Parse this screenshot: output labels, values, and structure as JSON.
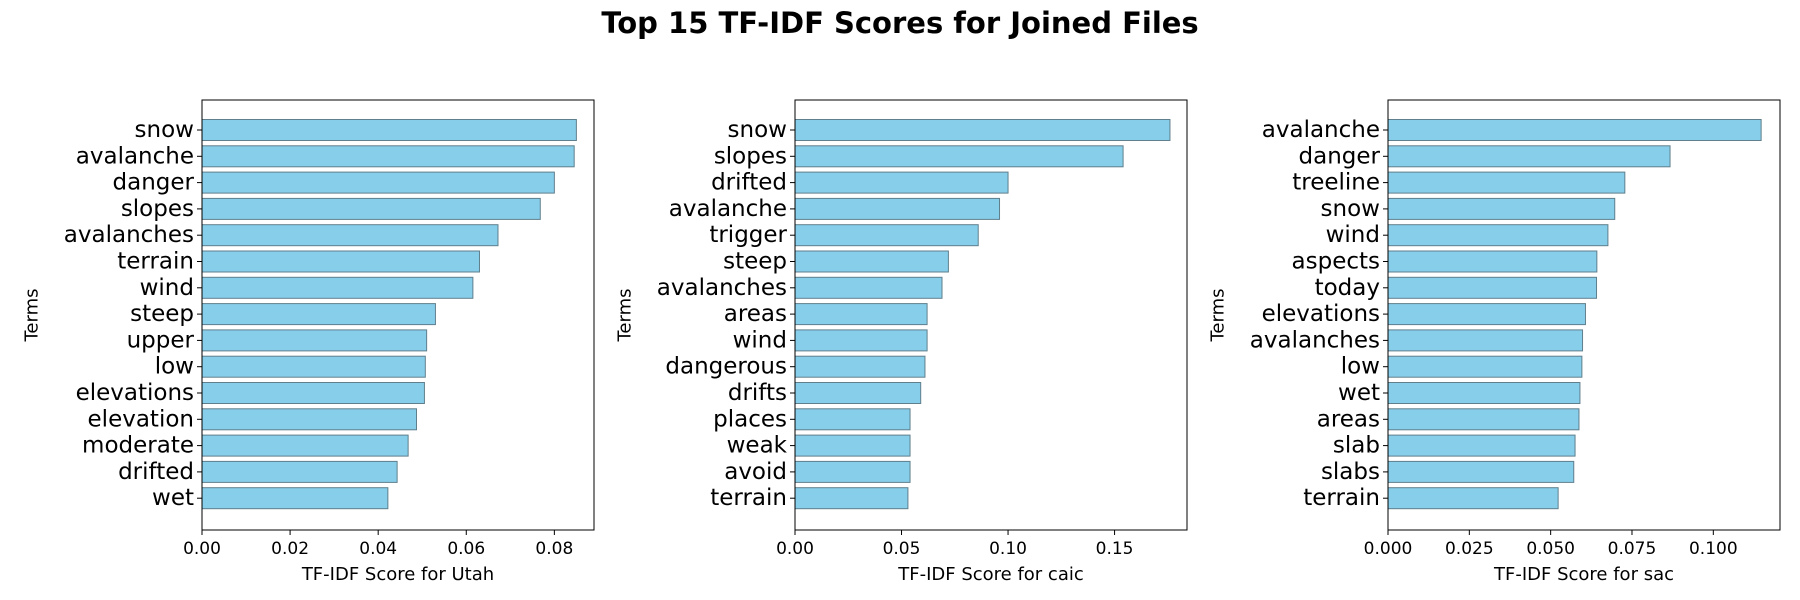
{
  "figure": {
    "title": "Top 15 TF-IDF Scores for Joined Files"
  },
  "colors": {
    "bar_fill": "#87CEEB",
    "bar_edge": "#5f7f8c",
    "axis": "#000000"
  },
  "chart_data": [
    {
      "type": "bar",
      "orientation": "horizontal",
      "xlabel": "TF-IDF Score for Utah",
      "ylabel": "Terms",
      "xlim": [
        0,
        0.089
      ],
      "xticks": [
        0.0,
        0.02,
        0.04,
        0.06,
        0.08
      ],
      "xtick_labels": [
        "0.00",
        "0.02",
        "0.04",
        "0.06",
        "0.08"
      ],
      "categories": [
        "snow",
        "avalanche",
        "danger",
        "slopes",
        "avalanches",
        "terrain",
        "wind",
        "steep",
        "upper",
        "low",
        "elevations",
        "elevation",
        "moderate",
        "drifted",
        "wet"
      ],
      "values": [
        0.085,
        0.0845,
        0.08,
        0.0768,
        0.0672,
        0.063,
        0.0615,
        0.053,
        0.051,
        0.0507,
        0.0505,
        0.0487,
        0.0468,
        0.0443,
        0.0422
      ]
    },
    {
      "type": "bar",
      "orientation": "horizontal",
      "xlabel": "TF-IDF Score for caic",
      "ylabel": "Terms",
      "xlim": [
        0,
        0.184
      ],
      "xticks": [
        0.0,
        0.05,
        0.1,
        0.15
      ],
      "xtick_labels": [
        "0.00",
        "0.05",
        "0.10",
        "0.15"
      ],
      "categories": [
        "snow",
        "slopes",
        "drifted",
        "avalanche",
        "trigger",
        "steep",
        "avalanches",
        "areas",
        "wind",
        "dangerous",
        "drifts",
        "places",
        "weak",
        "avoid",
        "terrain"
      ],
      "values": [
        0.176,
        0.154,
        0.1,
        0.096,
        0.086,
        0.072,
        0.069,
        0.062,
        0.062,
        0.061,
        0.059,
        0.054,
        0.054,
        0.054,
        0.053
      ]
    },
    {
      "type": "bar",
      "orientation": "horizontal",
      "xlabel": "TF-IDF Score for sac",
      "ylabel": "Terms",
      "xlim": [
        0,
        0.1205
      ],
      "xticks": [
        0.0,
        0.025,
        0.05,
        0.075,
        0.1
      ],
      "xtick_labels": [
        "0.000",
        "0.025",
        "0.050",
        "0.075",
        "0.100"
      ],
      "categories": [
        "avalanche",
        "danger",
        "treeline",
        "snow",
        "wind",
        "aspects",
        "today",
        "elevations",
        "avalanches",
        "low",
        "wet",
        "areas",
        "slab",
        "slabs",
        "terrain"
      ],
      "values": [
        0.1147,
        0.0867,
        0.0728,
        0.0697,
        0.0676,
        0.0642,
        0.0641,
        0.0607,
        0.0598,
        0.0596,
        0.059,
        0.0587,
        0.0575,
        0.0571,
        0.0523
      ]
    }
  ]
}
